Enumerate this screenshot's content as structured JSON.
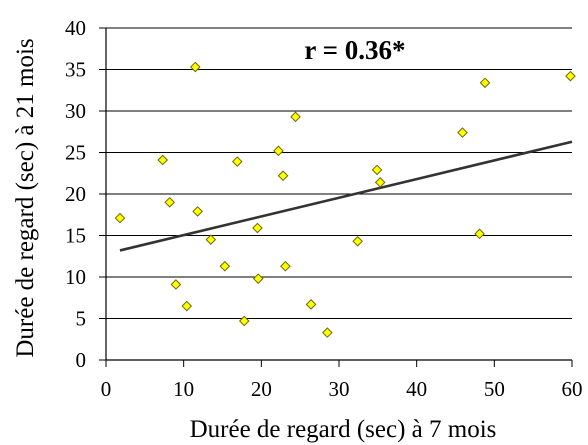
{
  "chart_data": {
    "type": "scatter",
    "xlabel": "Durée de regard (sec) à 7 mois",
    "ylabel": "Durée de regard (sec) à 21 mois",
    "annotation": "r = 0.36*",
    "xlim": [
      0,
      60
    ],
    "ylim": [
      0,
      40
    ],
    "xticks": [
      0,
      10,
      20,
      30,
      40,
      50,
      60
    ],
    "yticks": [
      0,
      5,
      10,
      15,
      20,
      25,
      30,
      35,
      40
    ],
    "grid": "horizontal",
    "marker_color": "#ffff00",
    "marker_edge": "#6b6b00",
    "line_color": "#333333",
    "trendline": {
      "x": [
        1.8,
        60
      ],
      "y": [
        13.2,
        26.3
      ]
    },
    "points": [
      {
        "x": 1.8,
        "y": 17.1
      },
      {
        "x": 7.3,
        "y": 24.1
      },
      {
        "x": 8.2,
        "y": 19.0
      },
      {
        "x": 9.0,
        "y": 9.1
      },
      {
        "x": 10.4,
        "y": 6.5
      },
      {
        "x": 11.5,
        "y": 35.3
      },
      {
        "x": 11.8,
        "y": 17.9
      },
      {
        "x": 13.5,
        "y": 14.5
      },
      {
        "x": 15.3,
        "y": 11.3
      },
      {
        "x": 16.9,
        "y": 23.9
      },
      {
        "x": 17.8,
        "y": 4.7
      },
      {
        "x": 19.5,
        "y": 15.9
      },
      {
        "x": 19.6,
        "y": 9.8
      },
      {
        "x": 22.2,
        "y": 25.2
      },
      {
        "x": 22.8,
        "y": 22.2
      },
      {
        "x": 23.1,
        "y": 11.3
      },
      {
        "x": 24.4,
        "y": 29.3
      },
      {
        "x": 26.4,
        "y": 6.7
      },
      {
        "x": 28.5,
        "y": 3.3
      },
      {
        "x": 32.4,
        "y": 14.3
      },
      {
        "x": 34.9,
        "y": 22.9
      },
      {
        "x": 35.3,
        "y": 21.4
      },
      {
        "x": 45.9,
        "y": 27.4
      },
      {
        "x": 48.1,
        "y": 15.2
      },
      {
        "x": 48.8,
        "y": 33.4
      },
      {
        "x": 59.8,
        "y": 34.2
      }
    ]
  }
}
